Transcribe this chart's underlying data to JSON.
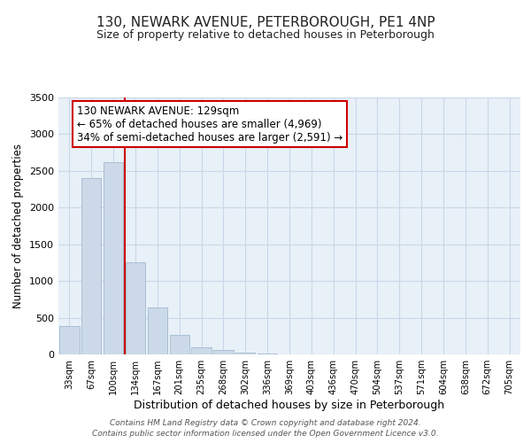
{
  "title": "130, NEWARK AVENUE, PETERBOROUGH, PE1 4NP",
  "subtitle": "Size of property relative to detached houses in Peterborough",
  "xlabel": "Distribution of detached houses by size in Peterborough",
  "ylabel": "Number of detached properties",
  "bar_labels": [
    "33sqm",
    "67sqm",
    "100sqm",
    "134sqm",
    "167sqm",
    "201sqm",
    "235sqm",
    "268sqm",
    "302sqm",
    "336sqm",
    "369sqm",
    "403sqm",
    "436sqm",
    "470sqm",
    "504sqm",
    "537sqm",
    "571sqm",
    "604sqm",
    "638sqm",
    "672sqm",
    "705sqm"
  ],
  "bar_values": [
    390,
    2400,
    2620,
    1250,
    640,
    260,
    100,
    55,
    25,
    10,
    5,
    0,
    0,
    0,
    0,
    0,
    0,
    0,
    0,
    0,
    0
  ],
  "bar_color": "#ccd9e8",
  "bar_edge_color": "#a8bfd4",
  "vline_color": "#cc0000",
  "vline_pos": 2.5,
  "annotation_title": "130 NEWARK AVENUE: 129sqm",
  "annotation_line1": "← 65% of detached houses are smaller (4,969)",
  "annotation_line2": "34% of semi-detached houses are larger (2,591) →",
  "annotation_box_facecolor": "#ffffff",
  "annotation_box_edgecolor": "#cc0000",
  "ylim": [
    0,
    3500
  ],
  "yticks": [
    0,
    500,
    1000,
    1500,
    2000,
    2500,
    3000,
    3500
  ],
  "grid_color": "#c8d8e8",
  "bg_color": "#e8f0f8",
  "footer1": "Contains HM Land Registry data © Crown copyright and database right 2024.",
  "footer2": "Contains public sector information licensed under the Open Government Licence v3.0."
}
